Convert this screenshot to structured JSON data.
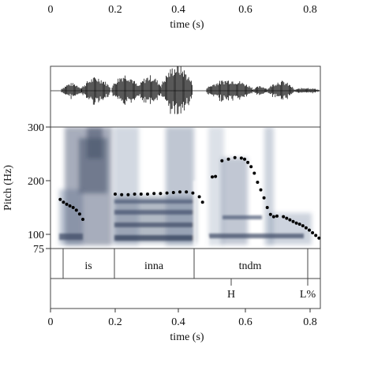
{
  "top_axis": {
    "ticks": [
      "0",
      "0.2",
      "0.4",
      "0.6",
      "0.8"
    ],
    "label": "time (s)"
  },
  "bottom_axis": {
    "ticks": [
      "0",
      "0.2",
      "0.4",
      "0.6",
      "0.8"
    ],
    "label": "time (s)"
  },
  "pitch_axis": {
    "label": "Pitch (Hz)",
    "ticks": [
      "300",
      "200",
      "100",
      "75"
    ]
  },
  "word_tier": [
    "is",
    "inna",
    "tndm"
  ],
  "tone_tier": [
    "H",
    "L%"
  ],
  "chart_data": {
    "type": "scatter",
    "title": "",
    "xlabel": "time (s)",
    "ylabel": "Pitch (Hz)",
    "xlim": [
      0,
      0.85
    ],
    "ylim": [
      75,
      300
    ],
    "series": [
      {
        "values": [
          [
            0.03,
            165
          ],
          [
            0.04,
            160
          ],
          [
            0.05,
            156
          ],
          [
            0.06,
            153
          ],
          [
            0.07,
            150
          ],
          [
            0.08,
            145
          ],
          [
            0.09,
            138
          ],
          [
            0.1,
            128
          ],
          [
            0.2,
            175
          ],
          [
            0.22,
            174
          ],
          [
            0.24,
            174
          ],
          [
            0.26,
            175
          ],
          [
            0.28,
            175
          ],
          [
            0.3,
            175
          ],
          [
            0.32,
            176
          ],
          [
            0.34,
            176
          ],
          [
            0.36,
            177
          ],
          [
            0.38,
            178
          ],
          [
            0.4,
            179
          ],
          [
            0.42,
            179
          ],
          [
            0.44,
            177
          ],
          [
            0.46,
            170
          ],
          [
            0.47,
            160
          ],
          [
            0.5,
            207
          ],
          [
            0.51,
            208
          ],
          [
            0.53,
            237
          ],
          [
            0.55,
            240
          ],
          [
            0.57,
            243
          ],
          [
            0.59,
            242
          ],
          [
            0.6,
            240
          ],
          [
            0.61,
            234
          ],
          [
            0.62,
            226
          ],
          [
            0.63,
            214
          ],
          [
            0.64,
            197
          ],
          [
            0.65,
            183
          ],
          [
            0.66,
            168
          ],
          [
            0.67,
            150
          ],
          [
            0.68,
            137
          ],
          [
            0.69,
            133
          ],
          [
            0.7,
            134
          ],
          [
            0.72,
            133
          ],
          [
            0.73,
            130
          ],
          [
            0.74,
            127
          ],
          [
            0.75,
            124
          ],
          [
            0.76,
            121
          ],
          [
            0.77,
            119
          ],
          [
            0.78,
            116
          ],
          [
            0.79,
            112
          ],
          [
            0.8,
            108
          ],
          [
            0.81,
            103
          ],
          [
            0.82,
            98
          ],
          [
            0.83,
            93
          ]
        ]
      }
    ]
  }
}
